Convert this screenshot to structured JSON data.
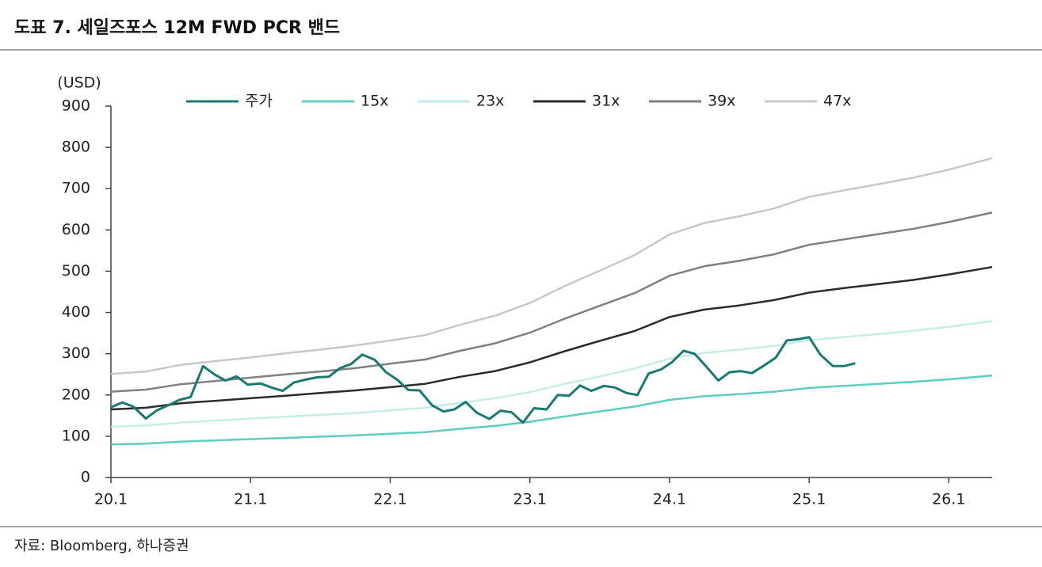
{
  "chart_data": {
    "type": "line",
    "title": "도표 7. 세일즈포스 12M FWD PCR 밴드",
    "y_label": "(USD)",
    "source": "자료: Bloomberg, 하나증권",
    "xlim": [
      20,
      26.31
    ],
    "ylim": [
      0,
      900
    ],
    "xticks": [
      {
        "value": 20,
        "label": "20.1"
      },
      {
        "value": 21,
        "label": "21.1"
      },
      {
        "value": 22,
        "label": "22.1"
      },
      {
        "value": 23,
        "label": "23.1"
      },
      {
        "value": 24,
        "label": "24.1"
      },
      {
        "value": 25,
        "label": "25.1"
      },
      {
        "value": 26,
        "label": "26.1"
      }
    ],
    "yticks": [
      0,
      100,
      200,
      300,
      400,
      500,
      600,
      700,
      800,
      900
    ],
    "grid": false,
    "legend": "top",
    "series": [
      {
        "name": "주가",
        "color": "#1a7a72",
        "width": 3,
        "x": [
          20,
          20.08,
          20.16,
          20.25,
          20.33,
          20.41,
          20.49,
          20.57,
          20.66,
          20.74,
          20.82,
          20.9,
          20.98,
          21.07,
          21.15,
          21.23,
          21.31,
          21.39,
          21.48,
          21.56,
          21.64,
          21.72,
          21.8,
          21.89,
          21.97,
          22.05,
          22.13,
          22.21,
          22.3,
          22.38,
          22.46,
          22.54,
          22.62,
          22.71,
          22.79,
          22.87,
          22.95,
          23.03,
          23.12,
          23.2,
          23.28,
          23.36,
          23.44,
          23.53,
          23.61,
          23.69,
          23.77,
          23.85,
          23.94,
          24.02,
          24.1,
          24.18,
          24.26,
          24.35,
          24.43,
          24.51,
          24.59,
          24.67,
          24.76,
          24.84,
          24.92,
          25.0,
          25.08,
          25.17,
          25.25,
          25.33
        ],
        "values": [
          170,
          182,
          172,
          143,
          163,
          175,
          188,
          195,
          270,
          250,
          235,
          245,
          225,
          228,
          218,
          210,
          230,
          237,
          243,
          244,
          265,
          275,
          298,
          285,
          255,
          237,
          212,
          211,
          175,
          160,
          165,
          183,
          157,
          142,
          162,
          158,
          133,
          168,
          165,
          200,
          198,
          223,
          210,
          222,
          218,
          205,
          200,
          252,
          262,
          280,
          307,
          300,
          270,
          235,
          255,
          258,
          253,
          270,
          290,
          332,
          335,
          340,
          298,
          270,
          270,
          277
        ]
      },
      {
        "name": "15x",
        "color": "#5ecdc0",
        "width": 2.5,
        "x": [
          20,
          20.25,
          20.5,
          20.75,
          21,
          21.25,
          21.5,
          21.75,
          22,
          22.25,
          22.5,
          22.75,
          23,
          23.25,
          23.5,
          23.75,
          24,
          24.25,
          24.5,
          24.75,
          25,
          25.25,
          25.5,
          25.75,
          26,
          26.31
        ],
        "values": [
          80,
          82,
          87,
          90,
          93,
          96,
          99,
          102,
          106,
          110,
          118,
          125,
          135,
          148,
          160,
          172,
          188,
          197,
          202,
          208,
          217,
          222,
          227,
          232,
          238,
          247
        ]
      },
      {
        "name": "23x",
        "color": "#c6ece6",
        "width": 2.5,
        "x": [
          20,
          20.25,
          20.5,
          20.75,
          21,
          21.25,
          21.5,
          21.75,
          22,
          22.25,
          22.5,
          22.75,
          23,
          23.25,
          23.5,
          23.75,
          24,
          24.25,
          24.5,
          24.75,
          25,
          25.25,
          25.5,
          25.75,
          26,
          26.31
        ],
        "values": [
          123,
          126,
          133,
          138,
          143,
          147,
          152,
          156,
          163,
          169,
          181,
          192,
          207,
          227,
          245,
          264,
          288,
          302,
          310,
          319,
          333,
          340,
          348,
          356,
          365,
          379
        ]
      },
      {
        "name": "31x",
        "color": "#2b2b2b",
        "width": 2.5,
        "x": [
          20,
          20.25,
          20.5,
          20.75,
          21,
          21.25,
          21.5,
          21.75,
          22,
          22.25,
          22.5,
          22.75,
          23,
          23.25,
          23.5,
          23.75,
          24,
          24.25,
          24.5,
          24.75,
          25,
          25.25,
          25.5,
          25.75,
          26,
          26.31
        ],
        "values": [
          165,
          169,
          180,
          186,
          192,
          198,
          205,
          211,
          219,
          227,
          244,
          258,
          279,
          306,
          331,
          355,
          389,
          407,
          417,
          430,
          448,
          459,
          469,
          479,
          492,
          510
        ]
      },
      {
        "name": "39x",
        "color": "#808080",
        "width": 2.5,
        "x": [
          20,
          20.25,
          20.5,
          20.75,
          21,
          21.25,
          21.5,
          21.75,
          22,
          22.25,
          22.5,
          22.75,
          23,
          23.25,
          23.5,
          23.75,
          24,
          24.25,
          24.5,
          24.75,
          25,
          25.25,
          25.5,
          25.75,
          26,
          26.31
        ],
        "values": [
          208,
          213,
          226,
          234,
          242,
          250,
          257,
          265,
          276,
          286,
          307,
          325,
          351,
          385,
          416,
          447,
          489,
          512,
          525,
          541,
          564,
          577,
          590,
          603,
          619,
          642
        ]
      },
      {
        "name": "47x",
        "color": "#c8c8c8",
        "width": 2.5,
        "x": [
          20,
          20.25,
          20.5,
          20.75,
          21,
          21.25,
          21.5,
          21.75,
          22,
          22.25,
          22.5,
          22.75,
          23,
          23.25,
          23.5,
          23.75,
          24,
          24.25,
          24.5,
          24.75,
          25,
          25.25,
          25.5,
          25.75,
          26,
          26.31
        ],
        "values": [
          251,
          257,
          273,
          282,
          291,
          301,
          310,
          320,
          332,
          345,
          370,
          392,
          423,
          464,
          501,
          539,
          589,
          617,
          633,
          652,
          680,
          696,
          711,
          727,
          746,
          774
        ]
      }
    ]
  }
}
